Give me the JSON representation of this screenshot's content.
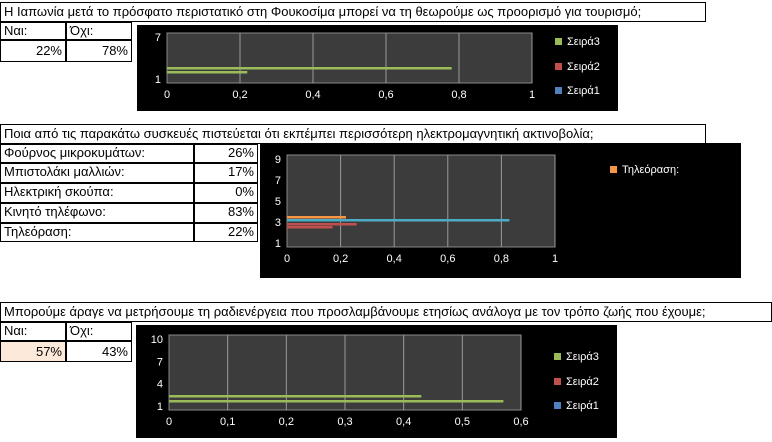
{
  "sheet": {
    "q1": {
      "question": "Η Ιαπωνία μετά το πρόσφατο περιστατικό στη Φουκοσίμα μπορεί να τη θεωρούμε ως προορισμό για τουρισμό;",
      "yes_label": "Ναι:",
      "no_label": "Όχι:",
      "yes_value": "22%",
      "no_value": "78%"
    },
    "q2": {
      "question": "Ποια από τις παρακάτω συσκευές πιστεύεται ότι εκπέμπει περισσότερη ηλεκτρομαγνητική ακτινοβολία;",
      "rows": [
        {
          "label": "Φούρνος μικροκυμάτων:",
          "value": "26%"
        },
        {
          "label": "Μπιστολάκι μαλλιών:",
          "value": "17%"
        },
        {
          "label": "Ηλεκτρική σκούπα:",
          "value": "0%"
        },
        {
          "label": "Κινητό τηλέφωνο:",
          "value": "83%"
        },
        {
          "label": "Τηλεόραση:",
          "value": "22%"
        }
      ]
    },
    "q3": {
      "question": "Μπορούμε άραγε να μετρήσουμε τη ραδιενέργεια που προσλαμβάνουμε ετησίως ανάλογα με τον τρόπο ζωής που έχουμε;",
      "yes_label": "Ναι:",
      "no_label": "Όχι:",
      "yes_value": "57%",
      "no_value": "43%"
    }
  },
  "chart_data": [
    {
      "type": "bar",
      "orientation": "horizontal",
      "y_ticks": [
        "1",
        "7"
      ],
      "x_ticks": [
        "0",
        "0,2",
        "0,4",
        "0,6",
        "0,8",
        "1"
      ],
      "xlim": [
        0,
        1
      ],
      "grid": true,
      "legend_position": "right",
      "series": [
        {
          "name": "Σειρά3",
          "color": "#9bbb59",
          "values": [
            0.78,
            0.22
          ]
        },
        {
          "name": "Σειρά2",
          "color": "#c0504d",
          "values": []
        },
        {
          "name": "Σειρά1",
          "color": "#4f81bd",
          "values": []
        }
      ]
    },
    {
      "type": "bar",
      "orientation": "horizontal",
      "y_ticks": [
        "1",
        "3",
        "5",
        "7",
        "9"
      ],
      "x_ticks": [
        "0",
        "0,2",
        "0,4",
        "0,6",
        "0,8",
        "1"
      ],
      "xlim": [
        0,
        1
      ],
      "grid": true,
      "legend_position": "right",
      "series": [
        {
          "name": "Τηλεόραση:",
          "color": "#f79646",
          "values": [
            0.22
          ]
        },
        {
          "name": "",
          "color": "#4bacc6",
          "values": [
            0.83
          ]
        },
        {
          "name": "",
          "color": "#c0504d",
          "values": [
            0.26,
            0.17
          ]
        }
      ]
    },
    {
      "type": "bar",
      "orientation": "horizontal",
      "y_ticks": [
        "1",
        "4",
        "7",
        "10"
      ],
      "x_ticks": [
        "0",
        "0,1",
        "0,2",
        "0,3",
        "0,4",
        "0,5",
        "0,6"
      ],
      "xlim": [
        0,
        0.6
      ],
      "grid": true,
      "legend_position": "right",
      "series": [
        {
          "name": "Σειρά3",
          "color": "#9bbb59",
          "values": [
            0.43,
            0.57
          ]
        },
        {
          "name": "Σειρά2",
          "color": "#c0504d",
          "values": []
        },
        {
          "name": "Σειρά1",
          "color": "#4f81bd",
          "values": []
        }
      ]
    }
  ]
}
